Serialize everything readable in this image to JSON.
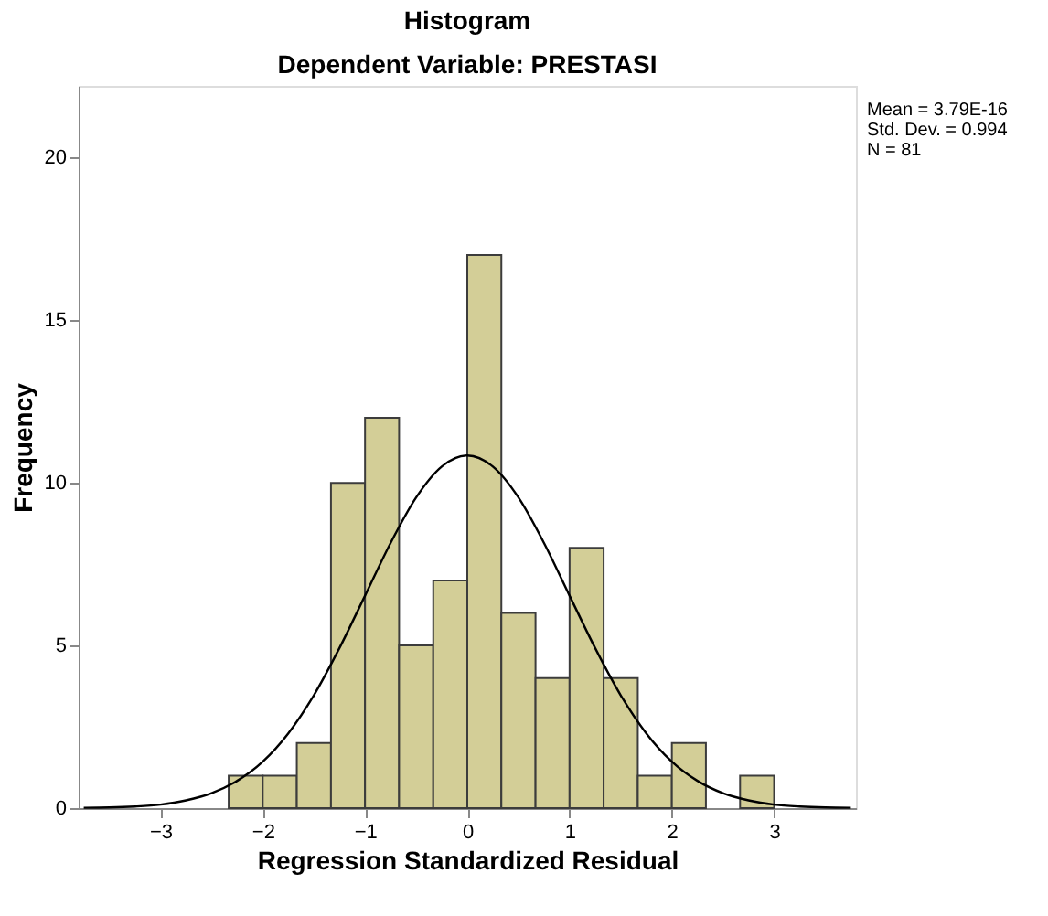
{
  "chart_data": {
    "type": "histogram",
    "title": "Histogram",
    "subtitle": "Dependent Variable: PRESTASI",
    "xlabel": "Regression Standardized Residual",
    "ylabel": "Frequency",
    "bins": [
      -2.333,
      -2,
      -1.667,
      -1.333,
      -1,
      -0.667,
      -0.333,
      0,
      0.333,
      0.667,
      1,
      1.333,
      1.667,
      2,
      2.333,
      2.667,
      3
    ],
    "values": [
      1,
      1,
      2,
      10,
      12,
      5,
      7,
      17,
      6,
      4,
      8,
      4,
      1,
      2,
      0,
      1
    ],
    "color": "#d3ce97",
    "series": [
      {
        "type": "line",
        "color": "#000000",
        "x": [
          -3.75,
          -3.5,
          -3.25,
          -3,
          -2.75,
          -2.5,
          -2.25,
          -2,
          -1.75,
          -1.5,
          -1.25,
          -1,
          -0.75,
          -0.5,
          -0.25,
          0,
          0.25,
          0.5,
          0.75,
          1,
          1.25,
          1.5,
          1.75,
          2,
          2.25,
          2.5,
          2.75,
          3,
          3.25,
          3.5,
          3.75
        ],
        "values": [
          0.01,
          0.02,
          0.05,
          0.11,
          0.24,
          0.46,
          0.84,
          1.43,
          2.3,
          3.47,
          4.92,
          6.53,
          8.15,
          9.55,
          10.5,
          10.84,
          10.5,
          9.55,
          8.15,
          6.53,
          4.92,
          3.47,
          2.3,
          1.43,
          0.84,
          0.46,
          0.24,
          0.11,
          0.05,
          0.02,
          0.01
        ]
      }
    ],
    "xlim": [
      -3.8,
      3.8
    ],
    "ylim": [
      0,
      22.2
    ],
    "xticks": [
      -3,
      -2,
      -1,
      0,
      1,
      2,
      3
    ],
    "yticks": [
      0,
      5,
      10,
      15,
      20
    ],
    "grid": false,
    "annotations": [
      "Mean = 3.79E-16",
      "Std. Dev. = 0.994",
      "N = 81"
    ]
  }
}
